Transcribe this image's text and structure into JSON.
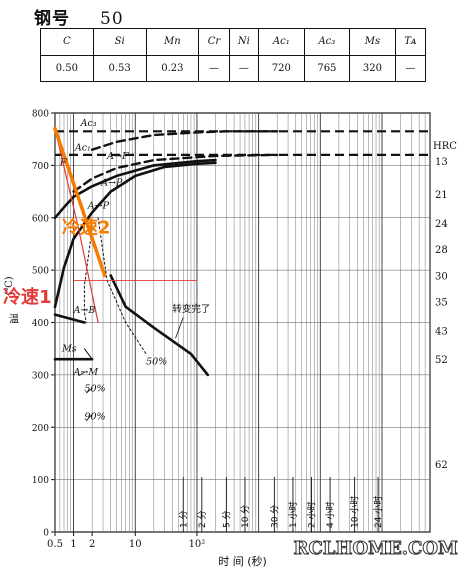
{
  "title": {
    "label": "钢号",
    "grade": "50"
  },
  "composition": {
    "headers": [
      "C",
      "Si",
      "Mn",
      "Cr",
      "Ni",
      "Ac₁",
      "Ac₃",
      "Ms",
      "Tᴀ"
    ],
    "values": [
      "0.50",
      "0.53",
      "0.23",
      "—",
      "—",
      "720",
      "765",
      "320",
      "—"
    ]
  },
  "chart_data": {
    "type": "line",
    "xscale": "log",
    "xlim": [
      0.5,
      600000
    ],
    "ylim": [
      0,
      800
    ],
    "xticks": [
      0.5,
      1,
      2,
      10,
      100
    ],
    "yticks": [
      0,
      100,
      200,
      300,
      400,
      500,
      600,
      700,
      800
    ],
    "xlabel": "时  间  (秒)",
    "ylabel": "温  度 (℃)",
    "ylabel_visible": [
      "(℃)",
      "温"
    ],
    "time_marks": [
      {
        "label": "1 分",
        "x": 60
      },
      {
        "label": "2 分",
        "x": 120
      },
      {
        "label": "5 分",
        "x": 300
      },
      {
        "label": "10 分",
        "x": 600
      },
      {
        "label": "30 分",
        "x": 1800
      },
      {
        "label": "1 小时",
        "x": 3600
      },
      {
        "label": "2 小时",
        "x": 7200
      },
      {
        "label": "4 小时",
        "x": 14400
      },
      {
        "label": "10 小时",
        "x": 36000
      },
      {
        "label": "24 小时",
        "x": 86400
      }
    ],
    "hrc": {
      "title": "HRC",
      "ticks": [
        {
          "label": "13",
          "y": 708
        },
        {
          "label": "21",
          "y": 645
        },
        {
          "label": "24",
          "y": 590
        },
        {
          "label": "28",
          "y": 540
        },
        {
          "label": "30",
          "y": 490
        },
        {
          "label": "35",
          "y": 440
        },
        {
          "label": "43",
          "y": 385
        },
        {
          "label": "52",
          "y": 330
        },
        {
          "label": "62",
          "y": 130
        }
      ]
    },
    "horizontal_lines": [
      {
        "name": "Ac₃",
        "y": 765,
        "style": "dashed-bold"
      },
      {
        "name": "Ac₁",
        "y": 720,
        "style": "dashed-bold"
      }
    ],
    "series": [
      {
        "name": "",
        "style": "dashed-bold",
        "x": [
          2,
          5,
          20,
          100,
          300,
          2000
        ],
        "y": [
          730,
          745,
          758,
          763,
          765,
          765
        ]
      },
      {
        "name": "",
        "style": "dashed-bold",
        "x": [
          1,
          2,
          5,
          20,
          200,
          2000
        ],
        "y": [
          650,
          675,
          695,
          710,
          718,
          720
        ]
      },
      {
        "name": "",
        "style": "solid-bold",
        "x": [
          0.5,
          0.7,
          1,
          2,
          5,
          20,
          100,
          200
        ],
        "y": [
          600,
          620,
          640,
          660,
          680,
          700,
          708,
          710
        ]
      },
      {
        "name": "",
        "style": "solid-bold",
        "x": [
          0.5,
          0.7,
          1,
          2,
          4,
          10,
          30,
          100,
          200
        ],
        "y": [
          430,
          505,
          560,
          610,
          650,
          680,
          697,
          703,
          705
        ]
      },
      {
        "name": "",
        "style": "solid-bold",
        "x": [
          4,
          7,
          20,
          80,
          150
        ],
        "y": [
          490,
          430,
          390,
          340,
          300
        ]
      },
      {
        "name": "",
        "style": "solid-bold",
        "x": [
          0.5,
          1.5
        ],
        "y": [
          415,
          400
        ]
      },
      {
        "name": "",
        "style": "solid-bold",
        "x": [
          0.5,
          2
        ],
        "y": [
          330,
          330
        ]
      },
      {
        "name": "",
        "style": "thin",
        "x": [
          2,
          1.5
        ],
        "y": [
          330,
          350
        ]
      },
      {
        "name": "",
        "style": "dotted",
        "x": [
          2,
          1.8,
          1.5,
          1.5,
          1.6
        ],
        "y": [
          580,
          540,
          470,
          420,
          400
        ]
      },
      {
        "name": "",
        "style": "dotted",
        "x": [
          2.5,
          3.5,
          7,
          15
        ],
        "y": [
          600,
          480,
          400,
          340
        ]
      }
    ],
    "cooling_lines": [
      {
        "name": "冷速1",
        "x": [
          0.5,
          1.2,
          2.5
        ],
        "y": [
          770,
          580,
          400
        ],
        "color": "#e53935"
      },
      {
        "name": "冷速2",
        "x": [
          0.5,
          3.2
        ],
        "y": [
          770,
          490
        ],
        "color": "#f57c00"
      }
    ],
    "ref_line": {
      "y": 480,
      "x": [
        1,
        100
      ],
      "color": "#e53935"
    },
    "annotations": [
      {
        "text": "Ac₃",
        "x": 1.3,
        "y": 775
      },
      {
        "text": "Ac₁",
        "x": 1.05,
        "y": 728
      },
      {
        "text": "A→F",
        "x": 3.5,
        "y": 712
      },
      {
        "text": "A→P",
        "x": 2.8,
        "y": 662
      },
      {
        "text": "A→P",
        "x": 1.7,
        "y": 618
      },
      {
        "text": "F",
        "x": 0.6,
        "y": 700
      },
      {
        "text": "A→B",
        "x": 1.0,
        "y": 418
      },
      {
        "text": "Ms",
        "x": 0.65,
        "y": 345
      },
      {
        "text": "A→M",
        "x": 1.0,
        "y": 300
      },
      {
        "text": "50%",
        "x": 1.5,
        "y": 268
      },
      {
        "text": "90%",
        "x": 1.5,
        "y": 215
      },
      {
        "text": "50%",
        "x": 15,
        "y": 320
      },
      {
        "text": "转变完了",
        "x": 40,
        "y": 420
      },
      {
        "text": "冷速1",
        "x": 0.5,
        "y": 437
      },
      {
        "text": "冷速2",
        "x": 4.5,
        "y": 570
      }
    ],
    "watermark": "RCLHOME.COM"
  }
}
